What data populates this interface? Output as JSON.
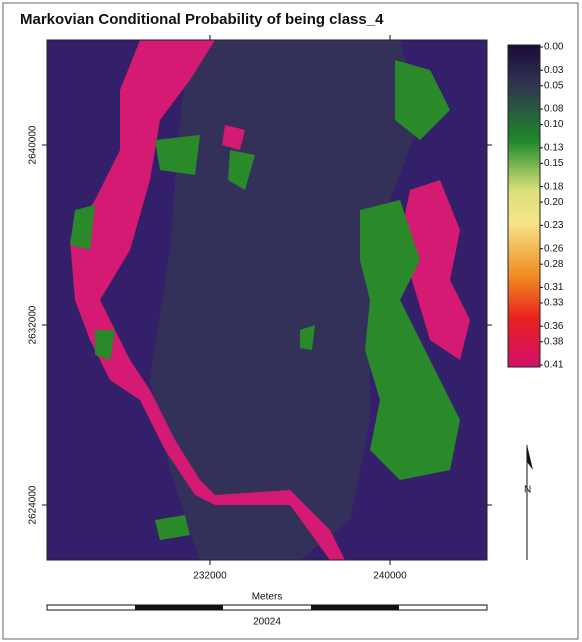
{
  "title": "Markovian Conditional Probability of being class_4",
  "map": {
    "xlim": [
      224756,
      244311
    ],
    "ylim": [
      2621556,
      2644667
    ],
    "xticks": [
      232000,
      240000
    ],
    "yticks": [
      2640000,
      2632000,
      2624000
    ]
  },
  "colorbar": {
    "clim": [
      0,
      0.41
    ],
    "ticks": [
      {
        "value": 0,
        "label": "0.00"
      },
      0.03,
      0.05,
      0.08,
      {
        "value": 0.1,
        "label": "0.10"
      },
      0.13,
      0.15,
      0.18,
      {
        "value": 0.2,
        "label": "0.20"
      },
      0.23,
      0.26,
      0.28,
      0.31,
      0.33,
      0.36,
      0.38,
      0.41
    ]
  },
  "north_label": "N",
  "scale_bar": {
    "unit": "Meters",
    "length": 20024
  }
}
